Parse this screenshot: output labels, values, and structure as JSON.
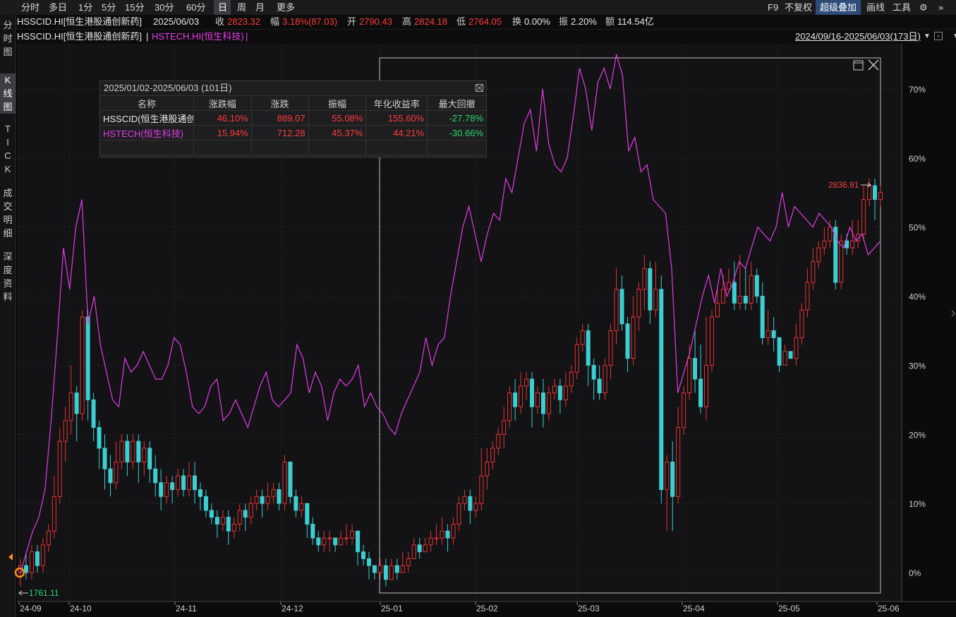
{
  "toolbar": {
    "periods": [
      "分时",
      "多日",
      "1分",
      "5分",
      "15分",
      "30分",
      "60分",
      "日",
      "周",
      "月",
      "更多"
    ],
    "active_period": "日",
    "right": [
      "F9",
      "不复权",
      "超级叠加",
      "画线",
      "工具"
    ]
  },
  "info": {
    "symbol": "HSSCID.HI[恒生港股通创新药]",
    "date": "2025/06/03",
    "close_label": "收",
    "close": "2823.32",
    "amp_label": "幅",
    "change": "3.18%(87.03)",
    "open_label": "开",
    "open": "2790.43",
    "high_label": "高",
    "high": "2824.18",
    "low_label": "低",
    "low": "2764.05",
    "turnover_label": "换",
    "turnover": "0.00%",
    "swing_label": "振",
    "swing": "2.20%",
    "amount_label": "额",
    "amount": "114.54亿"
  },
  "legend": {
    "main": "HSSCID.HI[恒生港股通创新药]",
    "sep": "|",
    "overlay": "HSTECH.HI(恒生科技)",
    "overlay_sep": "|",
    "range": "2024/09/16-2025/06/03(173日)"
  },
  "sidebar": {
    "items": [
      "分时图",
      "K线图",
      "TICK",
      "成交明细",
      "深度资料"
    ],
    "active": "K线图"
  },
  "stats": {
    "title": "2025/01/02-2025/06/03 (101日)",
    "headers": [
      "名称",
      "涨跌幅",
      "涨跌",
      "振幅",
      "年化收益率",
      "最大回撤"
    ],
    "rows": [
      {
        "name": "HSSCID(恒生港股通创新药)",
        "pct": "46.10%",
        "chg": "889.07",
        "amp": "55.08%",
        "annual": "155.60%",
        "dd": "-27.78%"
      },
      {
        "name": "HSTECH(恒生科技)",
        "pct": "15.94%",
        "chg": "712.28",
        "amp": "45.37%",
        "annual": "44.21%",
        "dd": "-30.66%"
      }
    ]
  },
  "chart_data": {
    "type": "candlestick+line",
    "x_ticks": [
      "24-09",
      "24-10",
      "24-11",
      "24-12",
      "25-01",
      "25-02",
      "25-03",
      "25-04",
      "25-05",
      "25-06"
    ],
    "y_ticks": [
      "0%",
      "10%",
      "20%",
      "30%",
      "40%",
      "50%",
      "60%",
      "70%"
    ],
    "ylim": [
      -2,
      74
    ],
    "max_label": "2836.91",
    "min_label": "1761.11",
    "colors": {
      "up": "#e83333",
      "down": "#3ccfd2",
      "overlay": "#e23ce6",
      "grid": "#2a2a2a"
    },
    "series": [
      {
        "name": "HSTECH.HI(恒生科技)",
        "values": [
          0,
          3,
          6,
          8,
          12,
          22,
          34,
          47,
          41,
          50,
          54,
          36,
          40,
          33,
          29,
          25,
          24,
          31,
          29,
          30,
          32,
          30,
          28,
          28,
          30,
          34,
          33,
          29,
          24,
          23,
          24,
          27,
          28,
          22,
          23,
          25,
          23,
          21,
          24,
          27,
          29,
          25,
          24,
          25,
          26,
          33,
          31,
          26,
          29,
          27,
          22,
          26,
          28,
          27,
          28,
          30,
          24,
          26,
          24,
          23,
          21,
          20,
          23,
          25,
          27,
          29,
          34,
          30,
          33,
          34,
          40,
          45,
          50,
          53,
          49,
          45,
          49,
          52,
          51,
          57,
          55,
          60,
          65,
          67,
          61,
          70,
          62,
          59,
          58,
          60,
          66,
          73,
          70,
          64,
          71,
          73,
          70,
          75,
          72,
          61,
          63,
          58,
          59,
          54,
          53,
          52,
          44,
          26,
          29,
          32,
          36,
          40,
          43,
          39,
          44,
          40,
          42,
          45,
          44,
          47,
          50,
          49,
          48,
          50,
          55,
          50,
          53,
          52,
          51,
          50,
          52,
          51,
          50,
          48,
          47,
          50,
          48,
          49,
          46,
          47,
          48
        ]
      },
      {
        "name": "HSSCID.HI(恒生港股通创新药)",
        "ohlc": [
          [
            0,
            1,
            -2,
            2
          ],
          [
            1,
            0,
            -1,
            3
          ],
          [
            0,
            3,
            -1,
            4
          ],
          [
            3,
            1,
            0,
            4
          ],
          [
            1,
            4,
            0,
            5
          ],
          [
            4,
            6,
            3,
            7
          ],
          [
            6,
            11,
            5,
            14
          ],
          [
            11,
            19,
            10,
            21
          ],
          [
            19,
            22,
            16,
            24
          ],
          [
            22,
            26,
            20,
            30
          ],
          [
            26,
            23,
            19,
            27
          ],
          [
            23,
            37,
            22,
            38
          ],
          [
            37,
            25,
            22,
            38
          ],
          [
            25,
            21,
            19,
            26
          ],
          [
            21,
            18,
            15,
            22
          ],
          [
            18,
            15,
            12,
            20
          ],
          [
            15,
            13,
            11,
            17
          ],
          [
            13,
            16,
            12,
            19
          ],
          [
            16,
            19,
            15,
            20
          ],
          [
            19,
            16,
            14,
            20
          ],
          [
            16,
            19,
            15,
            20
          ],
          [
            19,
            16,
            13,
            20
          ],
          [
            16,
            18,
            14,
            19
          ],
          [
            18,
            15,
            13,
            19
          ],
          [
            15,
            13,
            11,
            17
          ],
          [
            13,
            11,
            9,
            15
          ],
          [
            11,
            13,
            10,
            14
          ],
          [
            13,
            12,
            10,
            14
          ],
          [
            12,
            14,
            11,
            15
          ],
          [
            14,
            12,
            11,
            15
          ],
          [
            12,
            14,
            11,
            16
          ],
          [
            14,
            12,
            10,
            16
          ],
          [
            12,
            11,
            9,
            13
          ],
          [
            11,
            9,
            8,
            12
          ],
          [
            9,
            8,
            7,
            10
          ],
          [
            8,
            7,
            5,
            9
          ],
          [
            7,
            8,
            6,
            9
          ],
          [
            8,
            6,
            4,
            9
          ],
          [
            6,
            7,
            5,
            8
          ],
          [
            7,
            9,
            6,
            10
          ],
          [
            9,
            8,
            6,
            10
          ],
          [
            8,
            10,
            7,
            11
          ],
          [
            10,
            11,
            9,
            12
          ],
          [
            11,
            10,
            8,
            12
          ],
          [
            10,
            11,
            9,
            13
          ],
          [
            11,
            12,
            10,
            13
          ],
          [
            12,
            10,
            9,
            13
          ],
          [
            10,
            16,
            9,
            17
          ],
          [
            16,
            11,
            10,
            16
          ],
          [
            11,
            9,
            8,
            12
          ],
          [
            9,
            10,
            8,
            11
          ],
          [
            10,
            7,
            5,
            10
          ],
          [
            7,
            5,
            4,
            8
          ],
          [
            5,
            4,
            3,
            6
          ],
          [
            4,
            5,
            3,
            6
          ],
          [
            5,
            5,
            3,
            6
          ],
          [
            5,
            4,
            3,
            5
          ],
          [
            4,
            5,
            4,
            6
          ],
          [
            5,
            5,
            4,
            7
          ],
          [
            5,
            6,
            4,
            7
          ],
          [
            6,
            3,
            1,
            6
          ],
          [
            3,
            2,
            1,
            4
          ],
          [
            2,
            1,
            -1,
            3
          ],
          [
            1,
            0,
            -1,
            1
          ],
          [
            0,
            1,
            -1,
            2
          ],
          [
            1,
            -1,
            -2,
            2
          ],
          [
            -1,
            1,
            -1,
            2
          ],
          [
            1,
            0,
            -1,
            2
          ],
          [
            0,
            1,
            0,
            3
          ],
          [
            1,
            2,
            0,
            3
          ],
          [
            2,
            4,
            2,
            5
          ],
          [
            4,
            3,
            2,
            5
          ],
          [
            3,
            4,
            3,
            5
          ],
          [
            4,
            5,
            3,
            6
          ],
          [
            5,
            5,
            4,
            7
          ],
          [
            5,
            6,
            4,
            8
          ],
          [
            6,
            5,
            3,
            7
          ],
          [
            5,
            7,
            4,
            8
          ],
          [
            7,
            10,
            6,
            11
          ],
          [
            10,
            11,
            9,
            12
          ],
          [
            11,
            9,
            7,
            12
          ],
          [
            9,
            10,
            8,
            11
          ],
          [
            10,
            14,
            9,
            18
          ],
          [
            14,
            16,
            12,
            18
          ],
          [
            16,
            18,
            15,
            19
          ],
          [
            18,
            20,
            17,
            21
          ],
          [
            20,
            22,
            18,
            24
          ],
          [
            22,
            26,
            21,
            27
          ],
          [
            26,
            24,
            22,
            28
          ],
          [
            24,
            27,
            23,
            29
          ],
          [
            27,
            28,
            25,
            29
          ],
          [
            28,
            24,
            21,
            29
          ],
          [
            24,
            26,
            23,
            27
          ],
          [
            26,
            23,
            21,
            28
          ],
          [
            23,
            26,
            22,
            27
          ],
          [
            26,
            27,
            25,
            28
          ],
          [
            27,
            25,
            23,
            28
          ],
          [
            25,
            27,
            24,
            29
          ],
          [
            27,
            29,
            26,
            30
          ],
          [
            29,
            33,
            28,
            34
          ],
          [
            33,
            35,
            32,
            36
          ],
          [
            35,
            30,
            27,
            36
          ],
          [
            30,
            28,
            25,
            31
          ],
          [
            28,
            26,
            25,
            30
          ],
          [
            26,
            30,
            25,
            31
          ],
          [
            30,
            35,
            28,
            36
          ],
          [
            35,
            41,
            33,
            44
          ],
          [
            41,
            36,
            35,
            43
          ],
          [
            36,
            31,
            29,
            37
          ],
          [
            31,
            37,
            30,
            40
          ],
          [
            37,
            41,
            35,
            42
          ],
          [
            41,
            44,
            38,
            46
          ],
          [
            44,
            38,
            36,
            45
          ],
          [
            38,
            41,
            37,
            45
          ],
          [
            41,
            12,
            10,
            43
          ],
          [
            12,
            16,
            6,
            17
          ],
          [
            16,
            11,
            6,
            19
          ],
          [
            11,
            21,
            10,
            24
          ],
          [
            21,
            26,
            20,
            27
          ],
          [
            26,
            31,
            25,
            33
          ],
          [
            31,
            28,
            26,
            35
          ],
          [
            28,
            24,
            23,
            33
          ],
          [
            24,
            30,
            22,
            37
          ],
          [
            30,
            37,
            29,
            38
          ],
          [
            37,
            39,
            37,
            41
          ],
          [
            39,
            41,
            39,
            43
          ],
          [
            41,
            42,
            41,
            44
          ],
          [
            42,
            39,
            38,
            45
          ],
          [
            39,
            40,
            38,
            46
          ],
          [
            40,
            39,
            38,
            44
          ],
          [
            39,
            43,
            38,
            45
          ],
          [
            43,
            40,
            39,
            44
          ],
          [
            40,
            34,
            33,
            42
          ],
          [
            34,
            35,
            33,
            38
          ],
          [
            35,
            34,
            32,
            37
          ],
          [
            34,
            30,
            29,
            34
          ],
          [
            30,
            32,
            30,
            33
          ],
          [
            32,
            31,
            31,
            32
          ],
          [
            31,
            34,
            30,
            36
          ],
          [
            34,
            38,
            33,
            39
          ],
          [
            38,
            42,
            37,
            44
          ],
          [
            42,
            45,
            41,
            47
          ],
          [
            45,
            47,
            44,
            48
          ],
          [
            47,
            48,
            46,
            50
          ],
          [
            48,
            50,
            47,
            51
          ],
          [
            50,
            42,
            41,
            51
          ],
          [
            42,
            48,
            41,
            49
          ],
          [
            48,
            47,
            46,
            49
          ],
          [
            47,
            48,
            46,
            51
          ],
          [
            48,
            49,
            47,
            51
          ],
          [
            49,
            54,
            48,
            56
          ],
          [
            54,
            56,
            53,
            57
          ],
          [
            56,
            54,
            51,
            57
          ],
          [
            54,
            55,
            53,
            56
          ]
        ]
      }
    ]
  }
}
